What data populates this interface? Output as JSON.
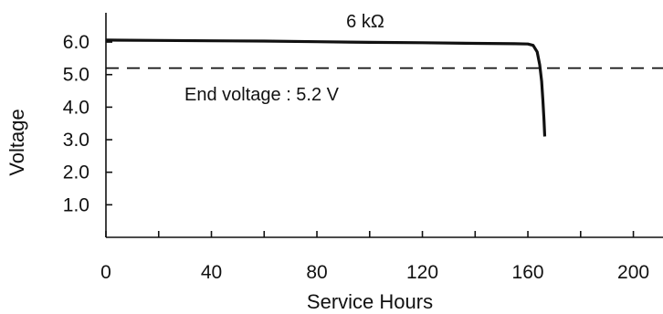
{
  "chart_data": {
    "type": "line",
    "title": "",
    "xlabel": "Service Hours",
    "ylabel": "Voltage",
    "xlim": [
      0,
      205
    ],
    "ylim": [
      0,
      6.9
    ],
    "x_ticks": [
      0,
      20,
      40,
      60,
      80,
      100,
      120,
      140,
      160,
      180,
      200
    ],
    "x_tick_labels": [
      "0",
      "40",
      "80",
      "120",
      "160",
      "200"
    ],
    "x_tick_label_values": [
      0,
      40,
      80,
      120,
      160,
      200
    ],
    "y_tick_labels": [
      "1.0",
      "2.0",
      "3.0",
      "4.0",
      "5.0",
      "6.0"
    ],
    "y_tick_label_values": [
      1,
      2,
      3,
      4,
      5,
      6
    ],
    "grid": false,
    "series": [
      {
        "name": "6 kΩ",
        "color": "#111111",
        "x": [
          0,
          20,
          40,
          60,
          80,
          100,
          120,
          140,
          155,
          160,
          162,
          163.5,
          164.5,
          165.2,
          165.7,
          166.1,
          166.4
        ],
        "y": [
          6.06,
          6.05,
          6.04,
          6.03,
          6.01,
          5.99,
          5.98,
          5.96,
          5.95,
          5.94,
          5.9,
          5.7,
          5.3,
          4.8,
          4.2,
          3.6,
          3.1
        ]
      }
    ],
    "reference_line": {
      "y": 5.2,
      "style": "dashed",
      "label": "End voltage : 5.2 V"
    },
    "annotations": [
      {
        "text": "6 kΩ"
      },
      {
        "text": "End voltage : 5.2 V"
      }
    ]
  }
}
